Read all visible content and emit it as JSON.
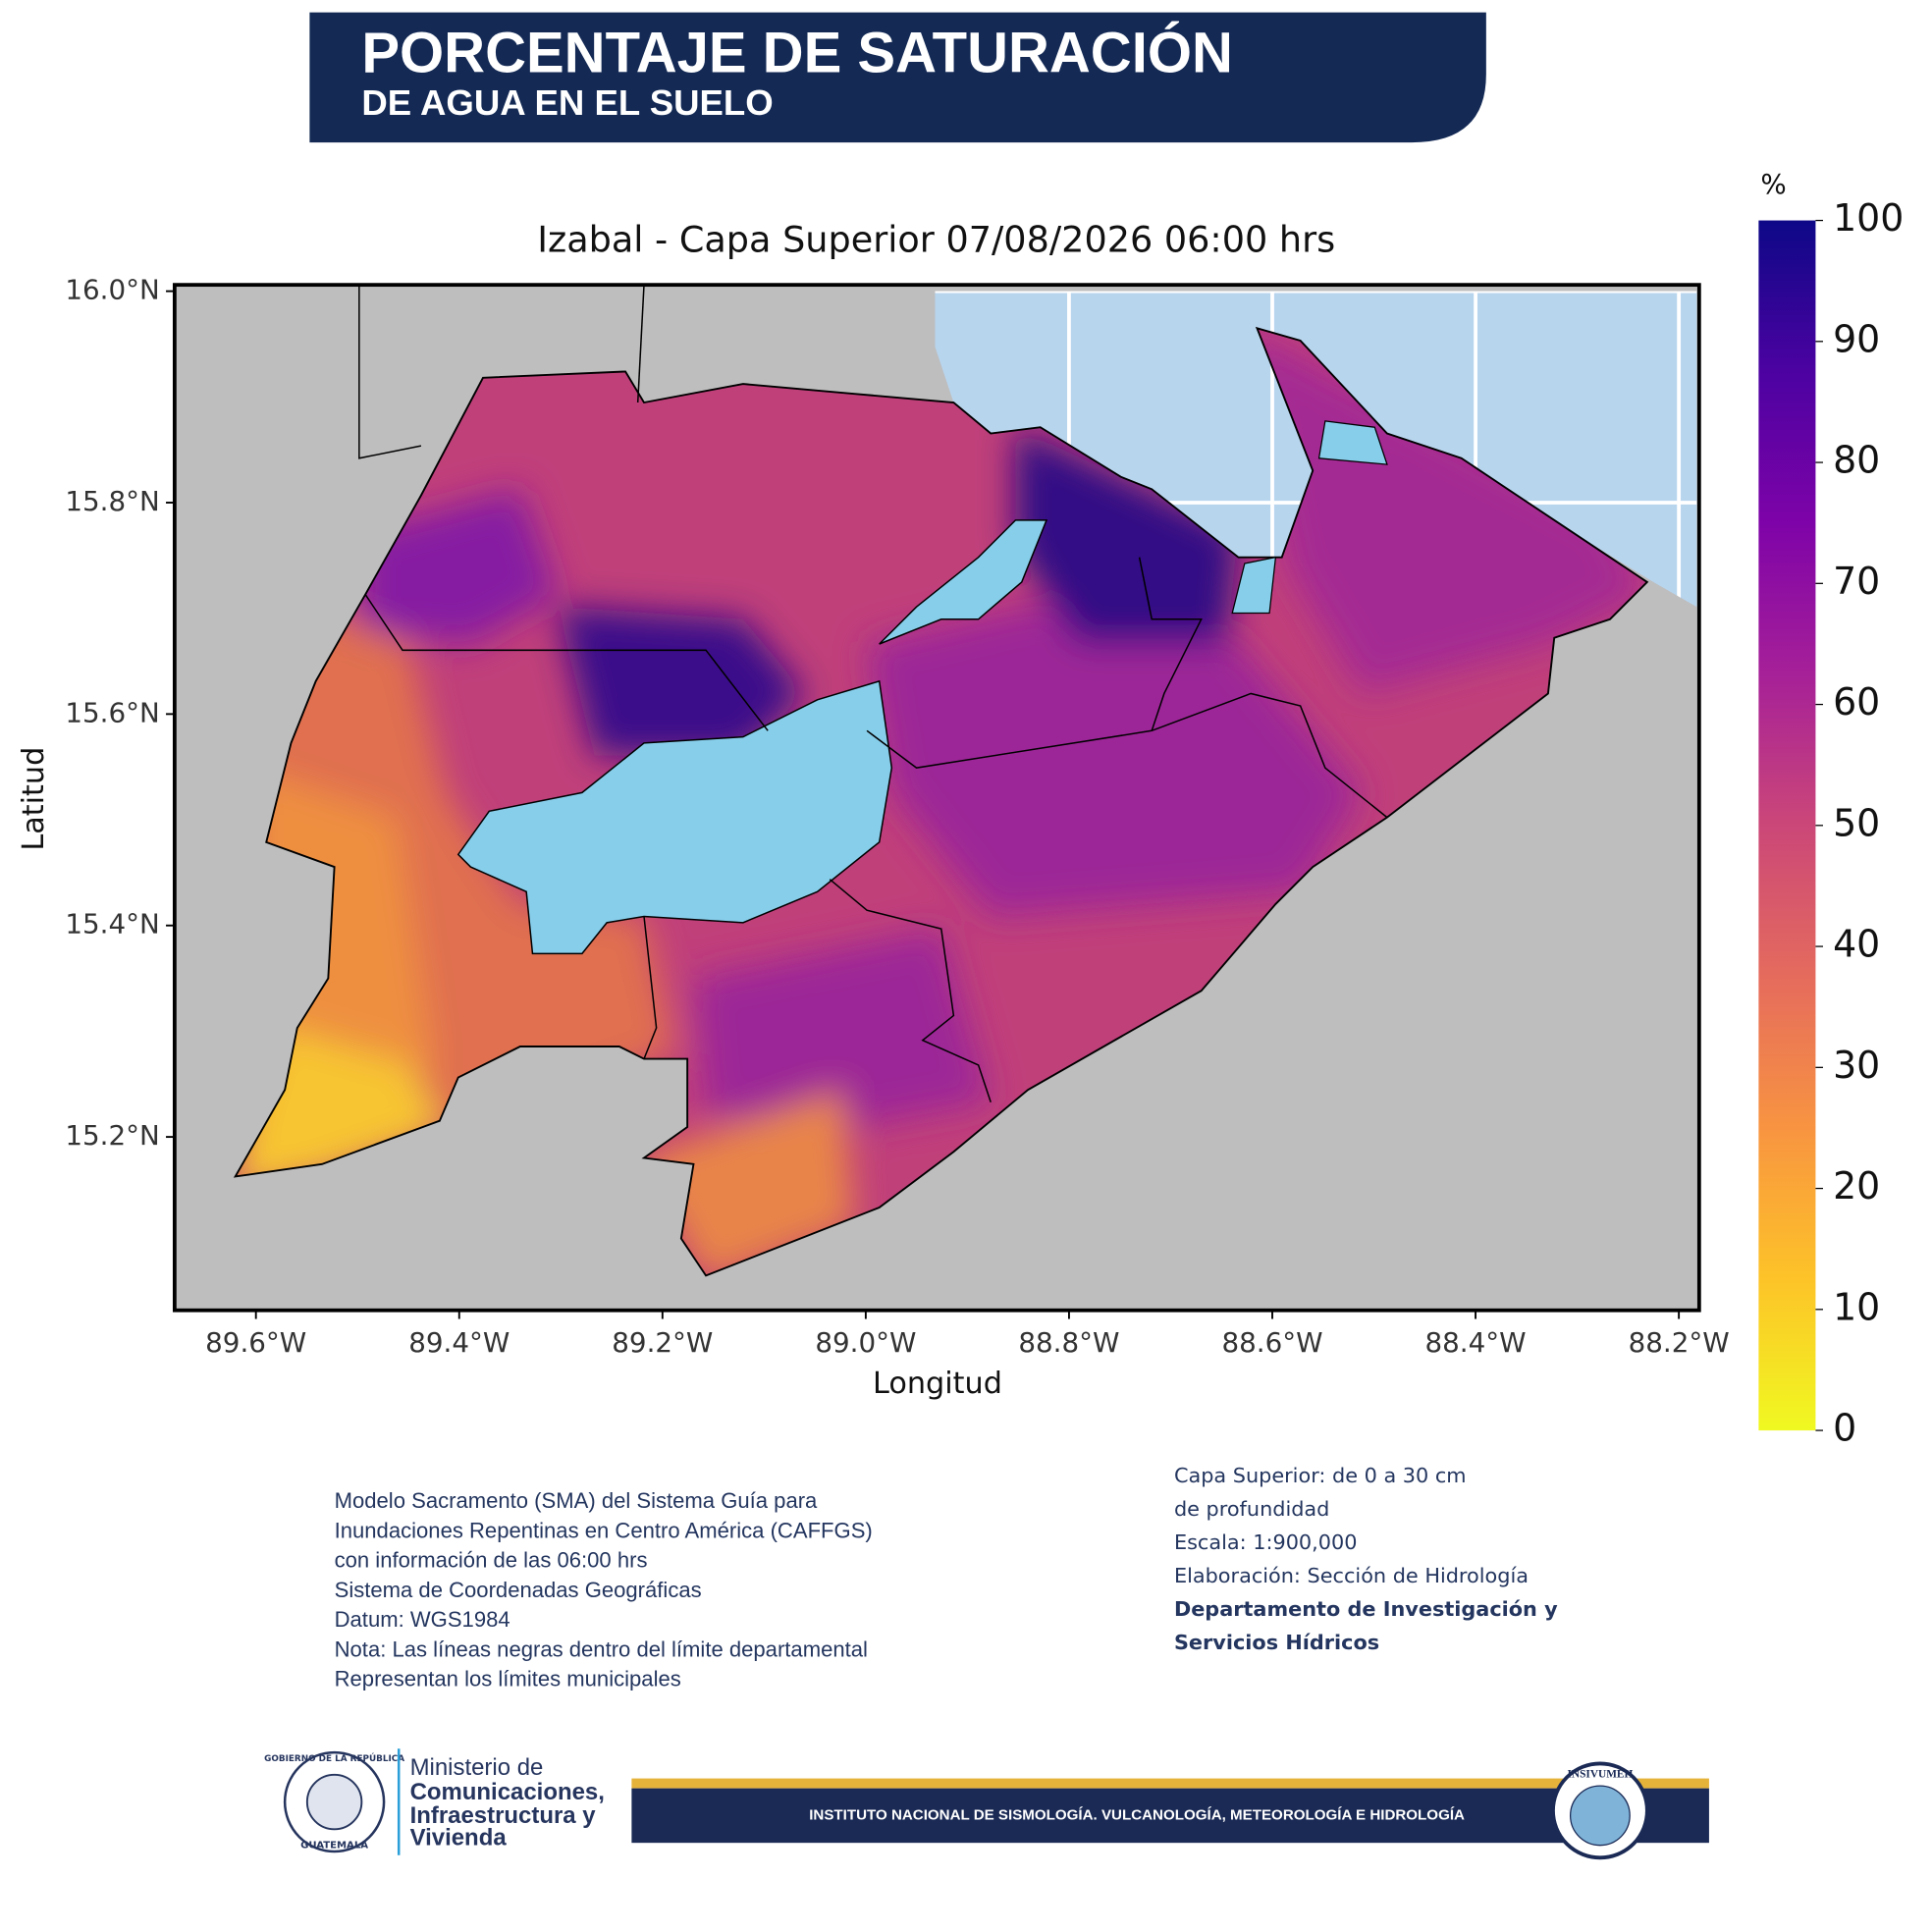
{
  "header": {
    "title": "PORCENTAJE DE SATURACIÓN",
    "subtitle": "DE AGUA EN EL SUELO"
  },
  "map": {
    "title": "Izabal - Capa Superior 07/08/2026 06:00 hrs",
    "xlabel": "Longitud",
    "ylabel": "Latitud",
    "xlim": [
      -89.68,
      -88.18
    ],
    "ylim": [
      15.036,
      16.006
    ],
    "xticks": [
      {
        "value": -89.6,
        "label": "89.6°W"
      },
      {
        "value": -89.4,
        "label": "89.4°W"
      },
      {
        "value": -89.2,
        "label": "89.2°W"
      },
      {
        "value": -89.0,
        "label": "89.0°W"
      },
      {
        "value": -88.8,
        "label": "88.8°W"
      },
      {
        "value": -88.6,
        "label": "88.6°W"
      },
      {
        "value": -88.4,
        "label": "88.4°W"
      },
      {
        "value": -88.2,
        "label": "88.2°W"
      }
    ],
    "yticks": [
      {
        "value": 15.2,
        "label": "15.2°N"
      },
      {
        "value": 15.4,
        "label": "15.4°N"
      },
      {
        "value": 15.6,
        "label": "15.6°N"
      },
      {
        "value": 15.8,
        "label": "15.8°N"
      },
      {
        "value": 16.0,
        "label": "16.0°N"
      }
    ],
    "grid": true
  },
  "colorbar": {
    "unit": "%",
    "lim": [
      0,
      100
    ],
    "ticks": [
      0,
      10,
      20,
      30,
      40,
      50,
      60,
      70,
      80,
      90,
      100
    ],
    "colors": [
      "#f0f921",
      "#fdc328",
      "#f89441",
      "#e56b5d",
      "#cb4778",
      "#a62098",
      "#7e03a8",
      "#4c02a1",
      "#0d0887"
    ]
  },
  "notes": {
    "left": [
      "Modelo Sacramento (SMA) del Sistema Guía para",
      "Inundaciones Repentinas en Centro América (CAFFGS)",
      "con información de las 06:00 hrs",
      "Sistema de Coordenadas Geográficas",
      "Datum: WGS1984",
      "Nota: Las líneas negras dentro del límite departamental",
      "Representan los límites municipales"
    ],
    "right": [
      "Capa Superior: de 0 a 30 cm",
      "de profundidad",
      "Escala: 1:900,000",
      "Elaboración: Sección de Hidrología"
    ],
    "right_bold": [
      "Departamento de Investigación y",
      "Servicios Hídricos"
    ]
  },
  "logos": {
    "ministry_seal": [
      "GOBIERNO DE LA REPÚBLICA",
      "GUATEMALA"
    ],
    "ministry": [
      "Ministerio de",
      "Comunicaciones,",
      "Infraestructura y",
      "Vivienda"
    ],
    "institute": "INSTITUTO NACIONAL DE SISMOLOGÍA. VULCANOLOGÍA, METEOROLOGÍA E HIDROLOGÍA",
    "institute_seal": "INSIVUMEH"
  }
}
